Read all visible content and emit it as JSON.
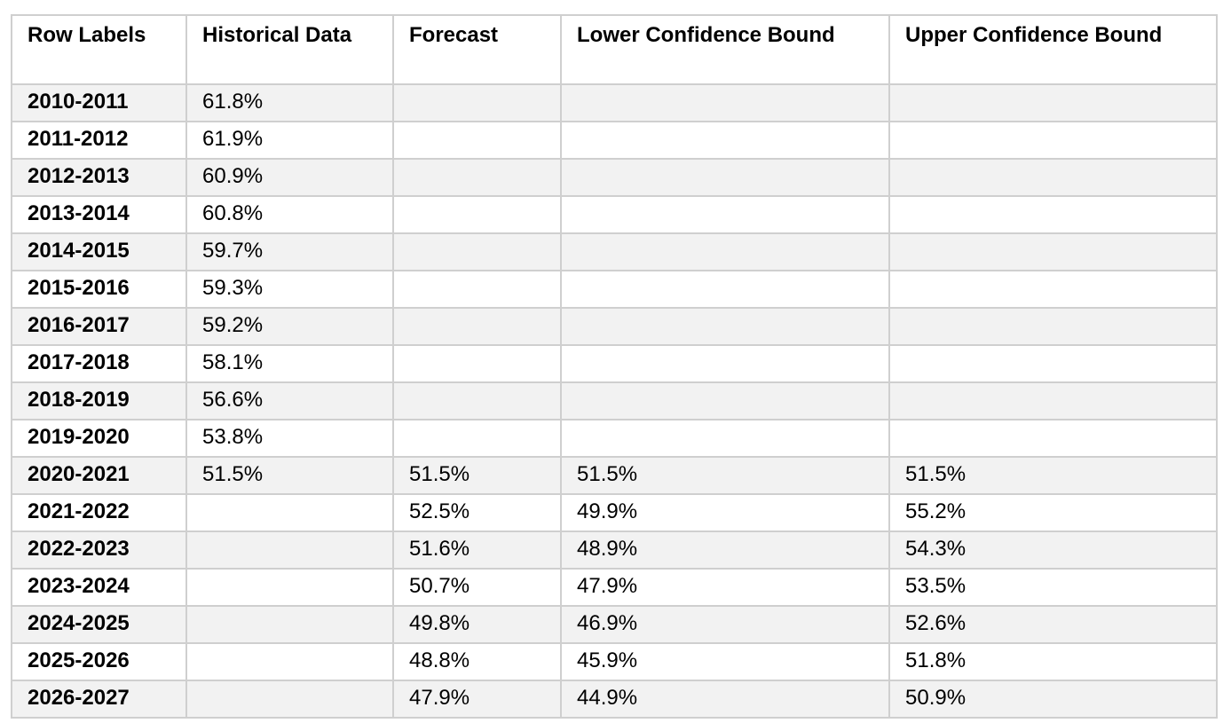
{
  "table": {
    "headers": [
      "Row Labels",
      "Historical Data",
      "Forecast",
      "Lower Confidence Bound",
      "Upper Confidence Bound"
    ],
    "rows": [
      [
        "2010-2011",
        "61.8%",
        "",
        "",
        ""
      ],
      [
        "2011-2012",
        "61.9%",
        "",
        "",
        ""
      ],
      [
        "2012-2013",
        "60.9%",
        "",
        "",
        ""
      ],
      [
        "2013-2014",
        "60.8%",
        "",
        "",
        ""
      ],
      [
        "2014-2015",
        "59.7%",
        "",
        "",
        ""
      ],
      [
        "2015-2016",
        "59.3%",
        "",
        "",
        ""
      ],
      [
        "2016-2017",
        "59.2%",
        "",
        "",
        ""
      ],
      [
        "2017-2018",
        "58.1%",
        "",
        "",
        ""
      ],
      [
        "2018-2019",
        "56.6%",
        "",
        "",
        ""
      ],
      [
        "2019-2020",
        "53.8%",
        "",
        "",
        ""
      ],
      [
        "2020-2021",
        "51.5%",
        "51.5%",
        "51.5%",
        "51.5%"
      ],
      [
        "2021-2022",
        "",
        "52.5%",
        "49.9%",
        "55.2%"
      ],
      [
        "2022-2023",
        "",
        "51.6%",
        "48.9%",
        "54.3%"
      ],
      [
        "2023-2024",
        "",
        "50.7%",
        "47.9%",
        "53.5%"
      ],
      [
        "2024-2025",
        "",
        "49.8%",
        "46.9%",
        "52.6%"
      ],
      [
        "2025-2026",
        "",
        "48.8%",
        "45.9%",
        "51.8%"
      ],
      [
        "2026-2027",
        "",
        "47.9%",
        "44.9%",
        "50.9%"
      ]
    ]
  }
}
